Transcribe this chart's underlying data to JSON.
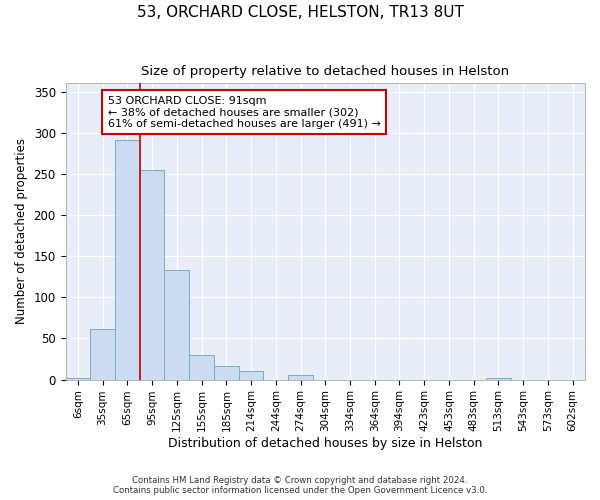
{
  "title": "53, ORCHARD CLOSE, HELSTON, TR13 8UT",
  "subtitle": "Size of property relative to detached houses in Helston",
  "xlabel": "Distribution of detached houses by size in Helston",
  "ylabel": "Number of detached properties",
  "categories": [
    "6sqm",
    "35sqm",
    "65sqm",
    "95sqm",
    "125sqm",
    "155sqm",
    "185sqm",
    "214sqm",
    "244sqm",
    "274sqm",
    "304sqm",
    "334sqm",
    "364sqm",
    "394sqm",
    "423sqm",
    "453sqm",
    "483sqm",
    "513sqm",
    "543sqm",
    "573sqm",
    "602sqm"
  ],
  "values": [
    2,
    62,
    291,
    255,
    133,
    30,
    16,
    10,
    0,
    5,
    0,
    0,
    0,
    0,
    0,
    0,
    0,
    2,
    0,
    0,
    0
  ],
  "bar_color": "#ccdcf0",
  "bar_edge_color": "#7aaad0",
  "property_line_color": "#cc0000",
  "annotation_text": "53 ORCHARD CLOSE: 91sqm\n← 38% of detached houses are smaller (302)\n61% of semi-detached houses are larger (491) →",
  "annotation_box_color": "#ffffff",
  "annotation_box_edge_color": "#cc0000",
  "footer_line1": "Contains HM Land Registry data © Crown copyright and database right 2024.",
  "footer_line2": "Contains public sector information licensed under the Open Government Licence v3.0.",
  "ylim": [
    0,
    360
  ],
  "background_color": "#e8eef8",
  "grid_color": "#ffffff",
  "fig_background": "#ffffff",
  "title_fontsize": 11,
  "subtitle_fontsize": 9.5,
  "tick_fontsize": 7.5,
  "ylabel_fontsize": 8.5,
  "xlabel_fontsize": 9
}
